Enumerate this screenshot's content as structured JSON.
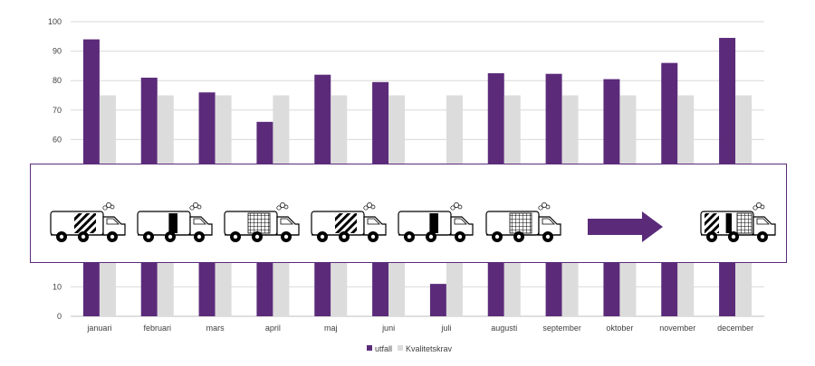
{
  "chart_data": {
    "type": "bar",
    "categories": [
      "januari",
      "februari",
      "mars",
      "april",
      "maj",
      "juni",
      "juli",
      "augusti",
      "september",
      "oktober",
      "november",
      "december"
    ],
    "series": [
      {
        "name": "utfall",
        "values": [
          94,
          81,
          76,
          66,
          82,
          79.5,
          11,
          82.5,
          82.3,
          80.5,
          86,
          94.5
        ]
      },
      {
        "name": "Kvalitetskrav",
        "values": [
          75,
          75,
          75,
          75,
          75,
          75,
          75,
          75,
          75,
          75,
          75,
          75
        ]
      }
    ],
    "ylim": [
      0,
      100
    ],
    "yticks": [
      0,
      10,
      60,
      70,
      80,
      90,
      100
    ],
    "grid": true,
    "legend": "bottom-center",
    "colors": {
      "utfall": "#5b2b7a",
      "Kvalitetskrav": "#dcdcdc",
      "grid": "#d9d9d9",
      "axis": "#bfbfbf"
    }
  },
  "overlay": {
    "border_color": "#5b2b7a",
    "arrow_color": "#5b2b7a",
    "trucks": [
      "diagonal-stripes",
      "solid-block",
      "grid",
      "diagonal-stripes",
      "solid-block",
      "grid"
    ],
    "arrow": "right-arrow-icon",
    "final_truck": [
      "diagonal-stripes",
      "solid-block",
      "grid"
    ]
  }
}
